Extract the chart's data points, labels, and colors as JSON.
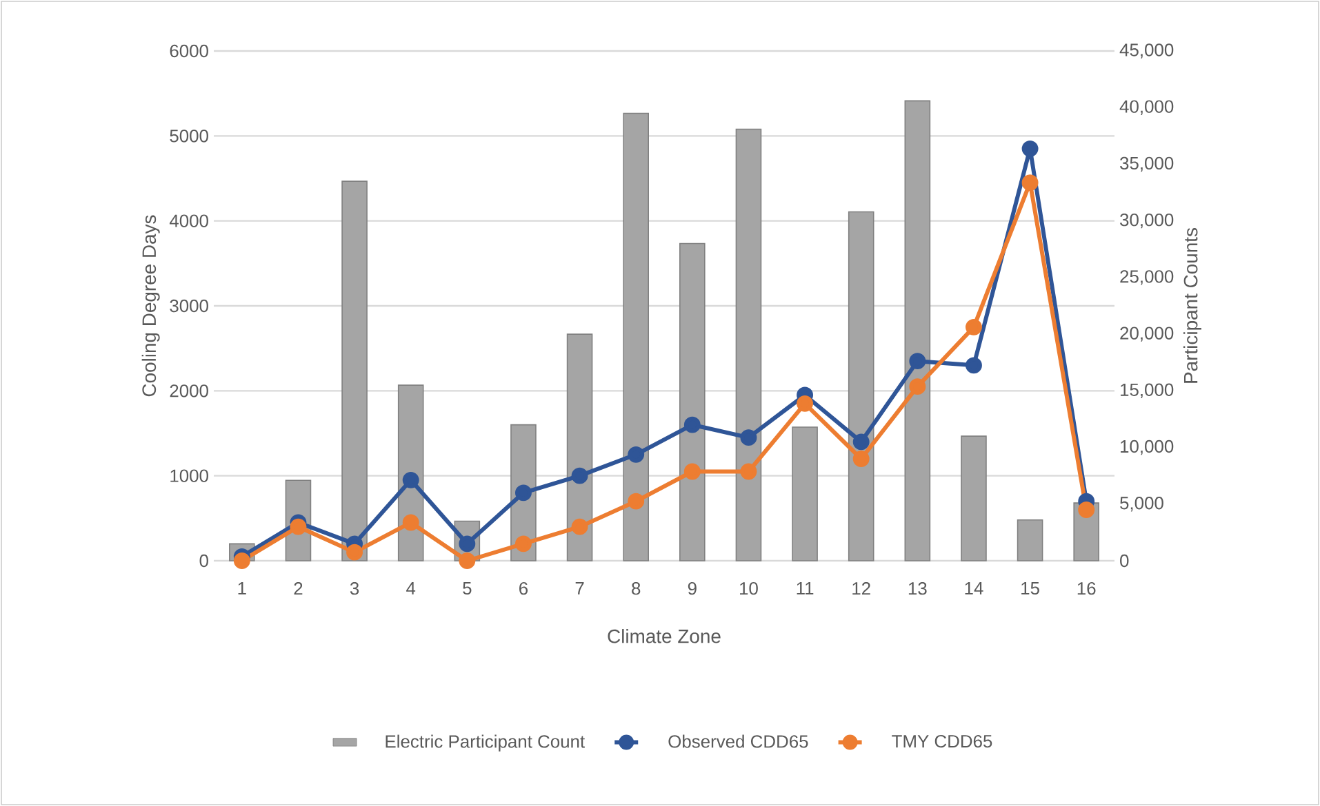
{
  "chart_data": {
    "type": "bar",
    "xlabel": "Climate Zone",
    "ylabel": "Cooling Degree Days",
    "y2label": "Participant Counts",
    "categories": [
      "1",
      "2",
      "3",
      "4",
      "5",
      "6",
      "7",
      "8",
      "9",
      "10",
      "11",
      "12",
      "13",
      "14",
      "15",
      "16"
    ],
    "series": [
      {
        "name": "Electric Participant Count",
        "axis": "y2",
        "color": "#a5a5a5",
        "values": [
          1500,
          7100,
          33500,
          15500,
          3500,
          12000,
          20000,
          39500,
          28000,
          38100,
          11800,
          30800,
          40600,
          11000,
          3600,
          5100
        ]
      },
      {
        "name": "Observed CDD65",
        "type": "line",
        "color": "#2f5597",
        "values": [
          50,
          450,
          200,
          950,
          200,
          800,
          1000,
          1250,
          1600,
          1450,
          1950,
          1400,
          2350,
          2300,
          4850,
          700
        ]
      },
      {
        "name": "TMY CDD65",
        "type": "line",
        "color": "#ed7d31",
        "values": [
          0,
          400,
          100,
          450,
          0,
          200,
          400,
          700,
          1050,
          1050,
          1850,
          1200,
          2050,
          2750,
          4450,
          600
        ]
      }
    ],
    "ylim": [
      0,
      6000
    ],
    "yticks": [
      0,
      1000,
      2000,
      3000,
      4000,
      5000,
      6000
    ],
    "y2lim": [
      0,
      45000
    ],
    "y2ticks": [
      0,
      {
        "value": 5000,
        "label": "5,000"
      },
      {
        "value": 10000,
        "label": "10,000"
      },
      {
        "value": 15000,
        "label": "15,000"
      },
      {
        "value": 20000,
        "label": "20,000"
      },
      {
        "value": 25000,
        "label": "25,000"
      },
      {
        "value": 30000,
        "label": "30,000"
      },
      {
        "value": 35000,
        "label": "35,000"
      },
      {
        "value": 40000,
        "label": "40,000"
      },
      {
        "value": 45000,
        "label": "45,000"
      }
    ],
    "grid": "y",
    "legend": "bottom",
    "marker": "circle"
  }
}
